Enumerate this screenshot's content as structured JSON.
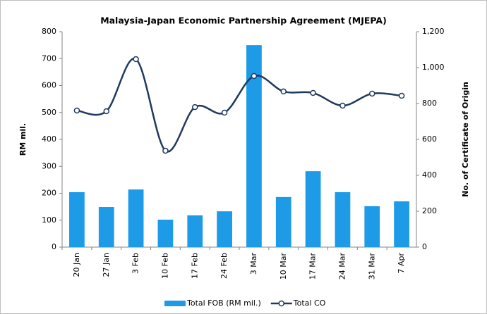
{
  "chart_data": {
    "type": "bar",
    "title": "Malaysia-Japan Economic Partnership Agreement (MJEPA)",
    "y_label": "RM mil.",
    "y2_label": "No. of Certificate of Origin",
    "categories": [
      "20 Jan",
      "27 Jan",
      "3 Feb",
      "10 Feb",
      "17 Feb",
      "24 Feb",
      "3 Mar",
      "10 Mar",
      "17 Mar",
      "24 Mar",
      "31 Mar",
      "7 Apr"
    ],
    "series": [
      {
        "name": "Total FOB (RM mil.)",
        "type": "bar",
        "color": "#1e9be6",
        "values": [
          204,
          149,
          214,
          102,
          118,
          133,
          750,
          186,
          282,
          204,
          152,
          170
        ]
      },
      {
        "name": "Total CO",
        "type": "line",
        "axis": "y2",
        "color": "#1f3a5f",
        "values": [
          761,
          757,
          1047,
          537,
          780,
          749,
          953,
          867,
          859,
          788,
          855,
          843
        ]
      }
    ],
    "ylim": [
      0,
      800
    ],
    "yticks": [
      0,
      100,
      200,
      300,
      400,
      500,
      600,
      700,
      800
    ],
    "y2lim": [
      0,
      1200
    ],
    "y2ticks": [
      0,
      200,
      400,
      600,
      800,
      {
        "value": 1000,
        "label": "1,000"
      },
      {
        "value": 1200,
        "label": "1,200"
      }
    ],
    "legend": "bottom"
  }
}
